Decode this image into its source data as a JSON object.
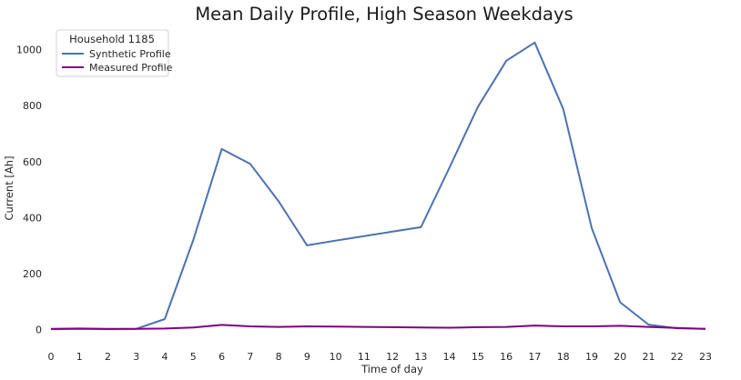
{
  "chart_data": {
    "type": "line",
    "title": "Mean Daily Profile, High Season Weekdays",
    "xlabel": "Time of day",
    "ylabel": "Current [Ah]",
    "x": [
      0,
      1,
      2,
      3,
      4,
      5,
      6,
      7,
      8,
      9,
      10,
      11,
      12,
      13,
      14,
      15,
      16,
      17,
      18,
      19,
      20,
      21,
      22,
      23
    ],
    "xlim": [
      0,
      23
    ],
    "ylim": [
      -40,
      1060
    ],
    "yticks": [
      0,
      200,
      400,
      600,
      800,
      1000
    ],
    "grid": false,
    "legend": {
      "title": "Household 1185",
      "placement": "top-left"
    },
    "series": [
      {
        "name": "Synthetic Profile",
        "color": "#4c72b0",
        "values": [
          2,
          3,
          2,
          3,
          38,
          320,
          645,
          592,
          458,
          301,
          318,
          334,
          350,
          366,
          578,
          795,
          960,
          1025,
          788,
          363,
          98,
          18,
          5,
          3
        ]
      },
      {
        "name": "Measured Profile",
        "color": "#800080",
        "values": [
          3,
          4,
          3,
          3,
          4,
          8,
          17,
          12,
          10,
          12,
          11,
          10,
          9,
          8,
          7,
          9,
          10,
          15,
          12,
          12,
          14,
          10,
          6,
          3
        ]
      }
    ]
  }
}
